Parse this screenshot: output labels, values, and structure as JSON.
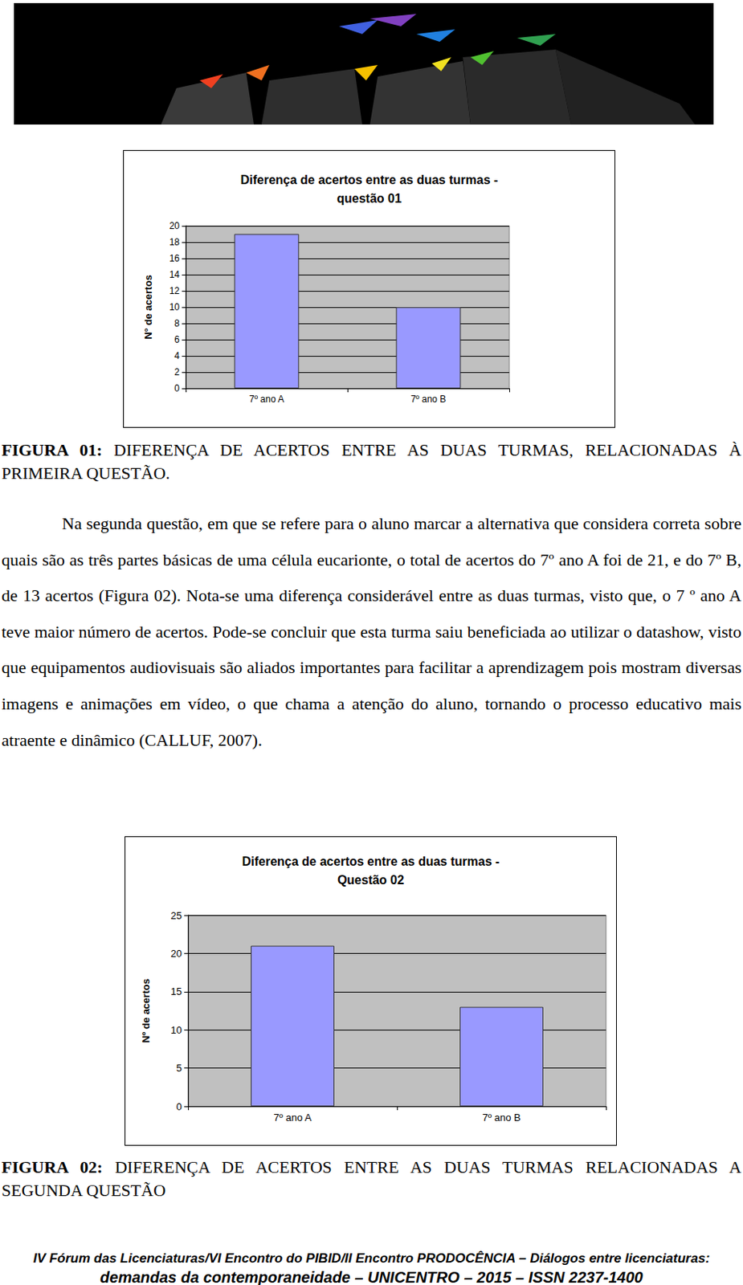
{
  "chart_data": [
    {
      "type": "bar",
      "title": "Diferença de acertos entre as duas turmas -\nquestão 01",
      "y_label": "N° de acertos",
      "categories": [
        "7º ano A",
        "7º ano B"
      ],
      "values": [
        19,
        10
      ],
      "color": "#9999ff",
      "ylim": [
        0,
        20
      ],
      "yticks": [
        0,
        2,
        4,
        6,
        8,
        10,
        12,
        14,
        16,
        18,
        20
      ],
      "grid": true
    },
    {
      "type": "bar",
      "title": "Diferença de acertos entre as duas turmas -\nQuestão 02",
      "y_label": "Nº de acertos",
      "categories": [
        "7º ano A",
        "7º ano B"
      ],
      "values": [
        21,
        13
      ],
      "color": "#9999ff",
      "ylim": [
        0,
        25
      ],
      "yticks": [
        0,
        5,
        10,
        15,
        20,
        25
      ],
      "grid": true
    }
  ],
  "captions": [
    {
      "label": "FIGURA 01:",
      "text": "DIFERENÇA DE ACERTOS ENTRE AS DUAS TURMAS, RELACIONADAS À PRIMEIRA QUESTÃO."
    },
    {
      "label": "FIGURA 02:",
      "text": "DIFERENÇA DE ACERTOS ENTRE AS DUAS TURMAS RELACIONADAS A SEGUNDA QUESTÃO"
    }
  ],
  "paragraph": "Na segunda questão, em que se refere para o aluno marcar a alternativa que considera correta sobre quais são as três partes básicas de uma célula eucarionte, o total de acertos do 7º ano A foi de 21, e do 7º B, de 13 acertos (Figura 02). Nota-se uma diferença considerável entre as duas turmas, visto que, o 7 º ano A teve maior número de acertos. Pode-se concluir que esta turma saiu beneficiada ao utilizar o datashow, visto que equipamentos audiovisuais são aliados importantes para facilitar a aprendizagem pois mostram diversas imagens e animações em vídeo, o que chama a atenção do aluno, tornando o processo educativo mais atraente e dinâmico (CALLUF, 2007).",
  "footer": [
    "IV Fórum das Licenciaturas/VI Encontro do PIBID/II Encontro PRODOCÊNCIA – Diálogos entre licenciaturas:",
    "demandas da contemporaneidade – UNICENTRO – 2015 – ISSN 2237-1400"
  ]
}
